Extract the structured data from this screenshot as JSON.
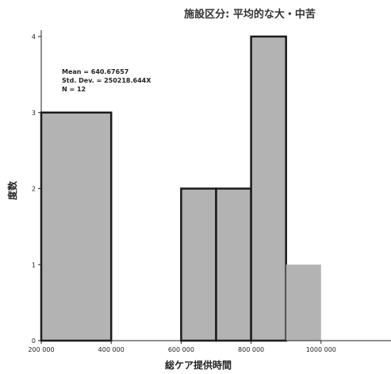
{
  "chart_data": {
    "type": "bar",
    "title": "施設区分: 平均的な大・中苦",
    "xlabel": "総ケア提供時間",
    "ylabel": "度数",
    "x_ticks": [
      "200 000",
      "400 000",
      "600 000",
      "800 000",
      "1000 000"
    ],
    "x_tick_values": [
      200000,
      400000,
      600000,
      800000,
      1000000
    ],
    "y_ticks": [
      "0",
      "1",
      "2",
      "3",
      "4"
    ],
    "xlim": [
      200000,
      1200000
    ],
    "ylim": [
      0,
      4
    ],
    "bins": [
      {
        "x0": 200000,
        "x1": 400000,
        "count": 3
      },
      {
        "x0": 400000,
        "x1": 600000,
        "count": 0
      },
      {
        "x0": 600000,
        "x1": 700000,
        "count": 2
      },
      {
        "x0": 700000,
        "x1": 800000,
        "count": 2
      },
      {
        "x0": 800000,
        "x1": 900000,
        "count": 4
      },
      {
        "x0": 900000,
        "x1": 1000000,
        "count": 1
      }
    ],
    "stats": {
      "mean": "Mean = 640.67657",
      "std_dev": "Std. Dev. = 250218.644X",
      "n": "N = 12"
    },
    "colors": {
      "bar_fill": "#b3b3b3",
      "bar_stroke": "#1a1a1a"
    },
    "grid": false
  }
}
